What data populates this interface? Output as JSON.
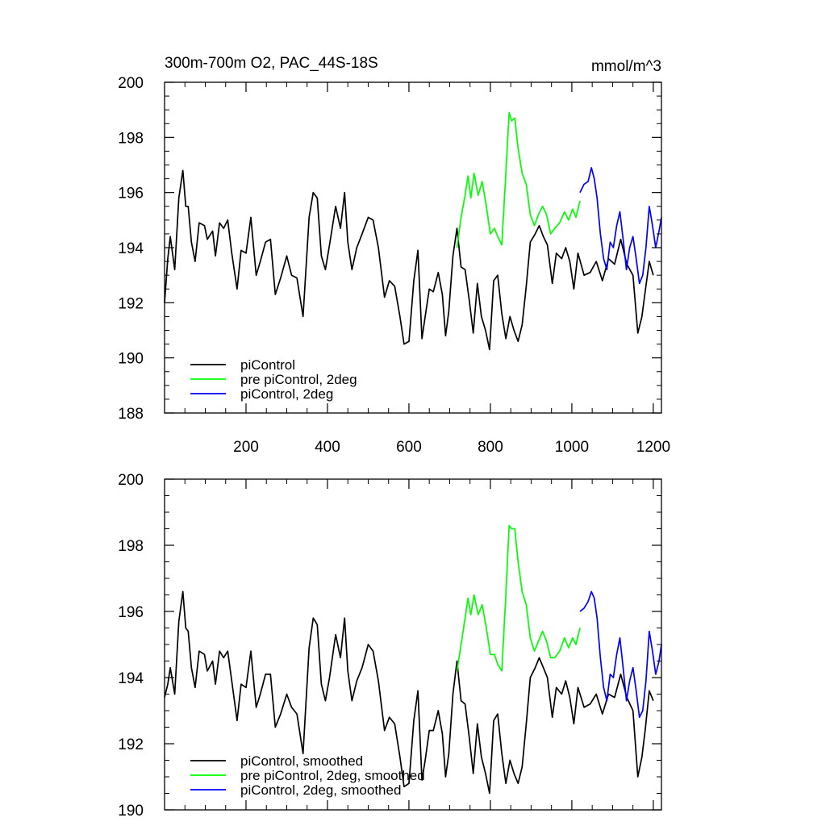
{
  "chart_data": [
    {
      "type": "line",
      "title": "300m-700m O2, PAC_44S-18S",
      "units": "mmol/m^3",
      "xlim": [
        0,
        1220
      ],
      "ylim": [
        188,
        200
      ],
      "yticks": [
        188,
        190,
        192,
        194,
        196,
        198,
        200
      ],
      "xticks": [
        200,
        400,
        600,
        800,
        1000,
        1200
      ],
      "grid": false,
      "legend_position": "bottom-left",
      "series": [
        {
          "name": "piControl",
          "color": "#000000",
          "x": [
            0,
            8,
            14,
            25,
            35,
            45,
            52,
            58,
            66,
            75,
            85,
            98,
            105,
            118,
            125,
            135,
            145,
            155,
            165,
            178,
            188,
            200,
            212,
            225,
            235,
            248,
            260,
            272,
            285,
            300,
            312,
            325,
            340,
            355,
            365,
            375,
            385,
            395,
            405,
            420,
            432,
            442,
            450,
            460,
            472,
            485,
            500,
            512,
            525,
            540,
            552,
            565,
            578,
            588,
            600,
            612,
            622,
            632,
            640,
            650,
            660,
            672,
            682,
            690,
            698,
            708,
            718,
            728,
            738,
            748,
            758,
            768,
            778,
            788,
            798,
            808,
            818,
            828,
            838,
            848,
            858,
            868,
            878,
            888,
            898,
            910,
            920,
            930,
            940,
            952,
            962,
            975,
            985,
            995,
            1005,
            1015,
            1030,
            1045,
            1060,
            1075,
            1090,
            1105,
            1120,
            1135,
            1150,
            1162,
            1172,
            1180,
            1190,
            1200
          ],
          "y": [
            192.0,
            193.6,
            194.4,
            193.2,
            195.8,
            196.8,
            195.5,
            195.5,
            194.2,
            193.5,
            194.9,
            194.8,
            194.3,
            194.6,
            193.7,
            194.9,
            194.7,
            195.0,
            193.8,
            192.5,
            193.9,
            193.8,
            195.1,
            193.0,
            193.5,
            194.2,
            194.3,
            192.3,
            192.9,
            193.7,
            193.0,
            192.9,
            191.5,
            195.1,
            196.0,
            195.8,
            193.7,
            193.2,
            194.1,
            195.5,
            194.7,
            196.0,
            194.2,
            193.2,
            194.0,
            194.5,
            195.1,
            195.0,
            194.0,
            192.2,
            192.8,
            192.6,
            191.5,
            190.5,
            190.6,
            192.8,
            193.9,
            190.7,
            191.5,
            192.5,
            192.4,
            193.1,
            192.3,
            190.8,
            191.7,
            193.7,
            194.7,
            193.3,
            193.2,
            192.1,
            190.9,
            192.7,
            191.5,
            191.0,
            190.3,
            192.8,
            193.0,
            191.6,
            190.7,
            191.5,
            191.0,
            190.6,
            191.2,
            192.6,
            194.2,
            194.5,
            194.8,
            194.4,
            194.1,
            192.7,
            193.8,
            193.6,
            194.0,
            193.5,
            192.5,
            193.8,
            193.0,
            193.1,
            193.5,
            192.8,
            193.6,
            193.4,
            194.3,
            193.4,
            193.0,
            190.9,
            191.5,
            192.4,
            193.5,
            193.0
          ]
        },
        {
          "name": "pre piControl, 2deg",
          "color": "#00ff00",
          "x": [
            718,
            728,
            738,
            745,
            752,
            760,
            770,
            780,
            790,
            800,
            810,
            818,
            828,
            838,
            846,
            852,
            860,
            868,
            878,
            888,
            898,
            908,
            918,
            928,
            938,
            948,
            958,
            970,
            982,
            992,
            1002,
            1010,
            1020
          ],
          "y": [
            194.0,
            195.1,
            195.9,
            196.6,
            195.8,
            196.7,
            195.9,
            196.4,
            195.5,
            194.5,
            194.7,
            194.4,
            194.1,
            196.7,
            198.9,
            198.6,
            198.7,
            197.6,
            196.7,
            196.3,
            195.2,
            194.8,
            195.2,
            195.5,
            195.2,
            194.5,
            194.7,
            194.9,
            195.3,
            195.0,
            195.4,
            195.1,
            195.7
          ]
        },
        {
          "name": "piControl, 2deg",
          "color": "#0000ff",
          "x": [
            1020,
            1030,
            1040,
            1048,
            1055,
            1062,
            1070,
            1078,
            1086,
            1094,
            1102,
            1110,
            1118,
            1126,
            1134,
            1142,
            1150,
            1158,
            1166,
            1174,
            1182,
            1190,
            1198,
            1206,
            1214,
            1220
          ],
          "y": [
            196.0,
            196.3,
            196.4,
            196.9,
            196.5,
            195.8,
            194.5,
            193.6,
            193.2,
            194.2,
            194.0,
            194.8,
            195.3,
            194.3,
            193.2,
            194.0,
            194.4,
            193.6,
            192.7,
            193.0,
            194.0,
            195.5,
            194.8,
            194.0,
            194.6,
            195.1
          ]
        }
      ]
    },
    {
      "type": "line",
      "xlim": [
        0,
        1220
      ],
      "ylim": [
        190,
        200
      ],
      "yticks": [
        190,
        192,
        194,
        196,
        198,
        200
      ],
      "grid": false,
      "legend_position": "bottom-left",
      "series": [
        {
          "name": "piControl, smoothed",
          "color": "#000000",
          "x": [
            0,
            8,
            14,
            25,
            35,
            45,
            52,
            58,
            66,
            75,
            85,
            98,
            105,
            118,
            125,
            135,
            145,
            155,
            165,
            178,
            188,
            200,
            212,
            225,
            235,
            248,
            260,
            272,
            285,
            300,
            312,
            325,
            340,
            355,
            365,
            375,
            385,
            395,
            405,
            420,
            432,
            442,
            450,
            460,
            472,
            485,
            500,
            512,
            525,
            540,
            552,
            565,
            578,
            588,
            600,
            612,
            622,
            632,
            640,
            650,
            660,
            672,
            682,
            690,
            698,
            708,
            718,
            728,
            738,
            748,
            758,
            768,
            778,
            788,
            798,
            808,
            818,
            828,
            838,
            848,
            858,
            868,
            878,
            888,
            898,
            910,
            920,
            930,
            940,
            952,
            962,
            975,
            985,
            995,
            1005,
            1015,
            1030,
            1045,
            1060,
            1075,
            1090,
            1105,
            1120,
            1135,
            1150,
            1162,
            1172,
            1180,
            1190,
            1200
          ],
          "y": [
            193.4,
            193.8,
            194.3,
            193.5,
            195.7,
            196.6,
            195.5,
            195.4,
            194.3,
            193.7,
            194.8,
            194.7,
            194.2,
            194.5,
            193.8,
            194.8,
            194.6,
            194.8,
            193.9,
            192.7,
            193.8,
            193.7,
            194.8,
            193.1,
            193.5,
            194.1,
            194.1,
            192.5,
            192.9,
            193.5,
            193.1,
            192.9,
            191.7,
            194.9,
            195.8,
            195.6,
            193.8,
            193.3,
            194.0,
            195.3,
            194.6,
            195.8,
            194.2,
            193.3,
            193.9,
            194.3,
            195.0,
            194.8,
            193.9,
            192.4,
            192.8,
            192.6,
            191.6,
            190.7,
            190.8,
            192.7,
            193.6,
            190.9,
            191.5,
            192.4,
            192.4,
            193.0,
            192.3,
            191.0,
            191.7,
            193.5,
            194.5,
            193.3,
            193.2,
            192.2,
            191.1,
            192.6,
            191.6,
            191.1,
            190.5,
            192.7,
            192.9,
            191.7,
            190.8,
            191.5,
            191.1,
            190.8,
            191.3,
            192.6,
            194.0,
            194.3,
            194.6,
            194.3,
            194.0,
            192.8,
            193.7,
            193.5,
            193.9,
            193.4,
            192.6,
            193.7,
            193.1,
            193.2,
            193.5,
            192.9,
            193.5,
            193.4,
            194.1,
            193.4,
            193.0,
            191.0,
            191.6,
            192.4,
            193.6,
            193.3
          ]
        },
        {
          "name": "pre piControl, 2deg, smoothed",
          "color": "#00ff00",
          "x": [
            718,
            728,
            738,
            745,
            752,
            760,
            770,
            780,
            790,
            800,
            810,
            818,
            828,
            838,
            846,
            852,
            860,
            868,
            878,
            888,
            898,
            908,
            918,
            928,
            938,
            948,
            958,
            970,
            982,
            992,
            1002,
            1010,
            1020
          ],
          "y": [
            194.2,
            195.0,
            195.8,
            196.4,
            195.9,
            196.5,
            195.9,
            196.2,
            195.5,
            194.7,
            194.7,
            194.4,
            194.2,
            196.5,
            198.6,
            198.5,
            198.5,
            197.5,
            196.6,
            196.2,
            195.2,
            194.8,
            195.1,
            195.4,
            195.1,
            194.6,
            194.6,
            194.8,
            195.2,
            194.9,
            195.2,
            195.0,
            195.5
          ]
        },
        {
          "name": "piControl, 2deg, smoothed",
          "color": "#0000ff",
          "x": [
            1020,
            1030,
            1040,
            1048,
            1055,
            1062,
            1070,
            1078,
            1086,
            1094,
            1102,
            1110,
            1118,
            1126,
            1134,
            1142,
            1150,
            1158,
            1166,
            1174,
            1182,
            1190,
            1198,
            1206,
            1214,
            1220
          ],
          "y": [
            196.0,
            196.1,
            196.3,
            196.6,
            196.4,
            195.8,
            194.6,
            193.7,
            193.3,
            194.1,
            194.0,
            194.7,
            195.2,
            194.3,
            193.3,
            193.9,
            194.3,
            193.6,
            192.8,
            193.0,
            193.9,
            195.4,
            194.8,
            194.1,
            194.5,
            195.0
          ]
        }
      ]
    }
  ]
}
